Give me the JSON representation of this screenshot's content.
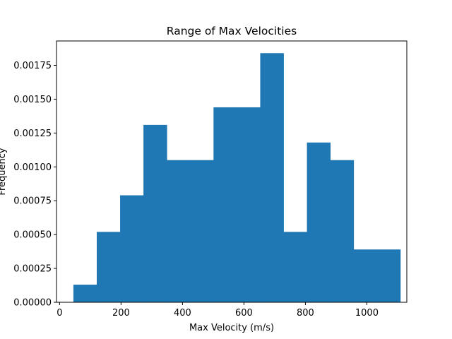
{
  "chart_data": {
    "type": "bar",
    "title": "Range of Max Velocities",
    "xlabel": "Max Velocity (m/s)",
    "ylabel": "Frequency",
    "xlim": [
      -10,
      1130
    ],
    "ylim": [
      0,
      0.00193
    ],
    "bar_color": "#1f77b4",
    "bin_edges": [
      45,
      121,
      197,
      273,
      349,
      425,
      501,
      577,
      653,
      729,
      805,
      881,
      957,
      1033,
      1109
    ],
    "values": [
      0.00013,
      0.00052,
      0.00079,
      0.00131,
      0.00105,
      0.00105,
      0.00144,
      0.00144,
      0.00184,
      0.00052,
      0.00118,
      0.00105,
      0.00039,
      0.00039
    ],
    "x_ticks": [
      0,
      200,
      400,
      600,
      800,
      1000
    ],
    "x_tick_labels": [
      "0",
      "200",
      "400",
      "600",
      "800",
      "1000"
    ],
    "y_ticks": [
      0,
      0.00025,
      0.0005,
      0.00075,
      0.001,
      0.00125,
      0.0015,
      0.00175
    ],
    "y_tick_labels": [
      "0.00000",
      "0.00025",
      "0.00050",
      "0.00075",
      "0.00100",
      "0.00125",
      "0.00150",
      "0.00175"
    ],
    "grid": false,
    "legend": "none"
  }
}
